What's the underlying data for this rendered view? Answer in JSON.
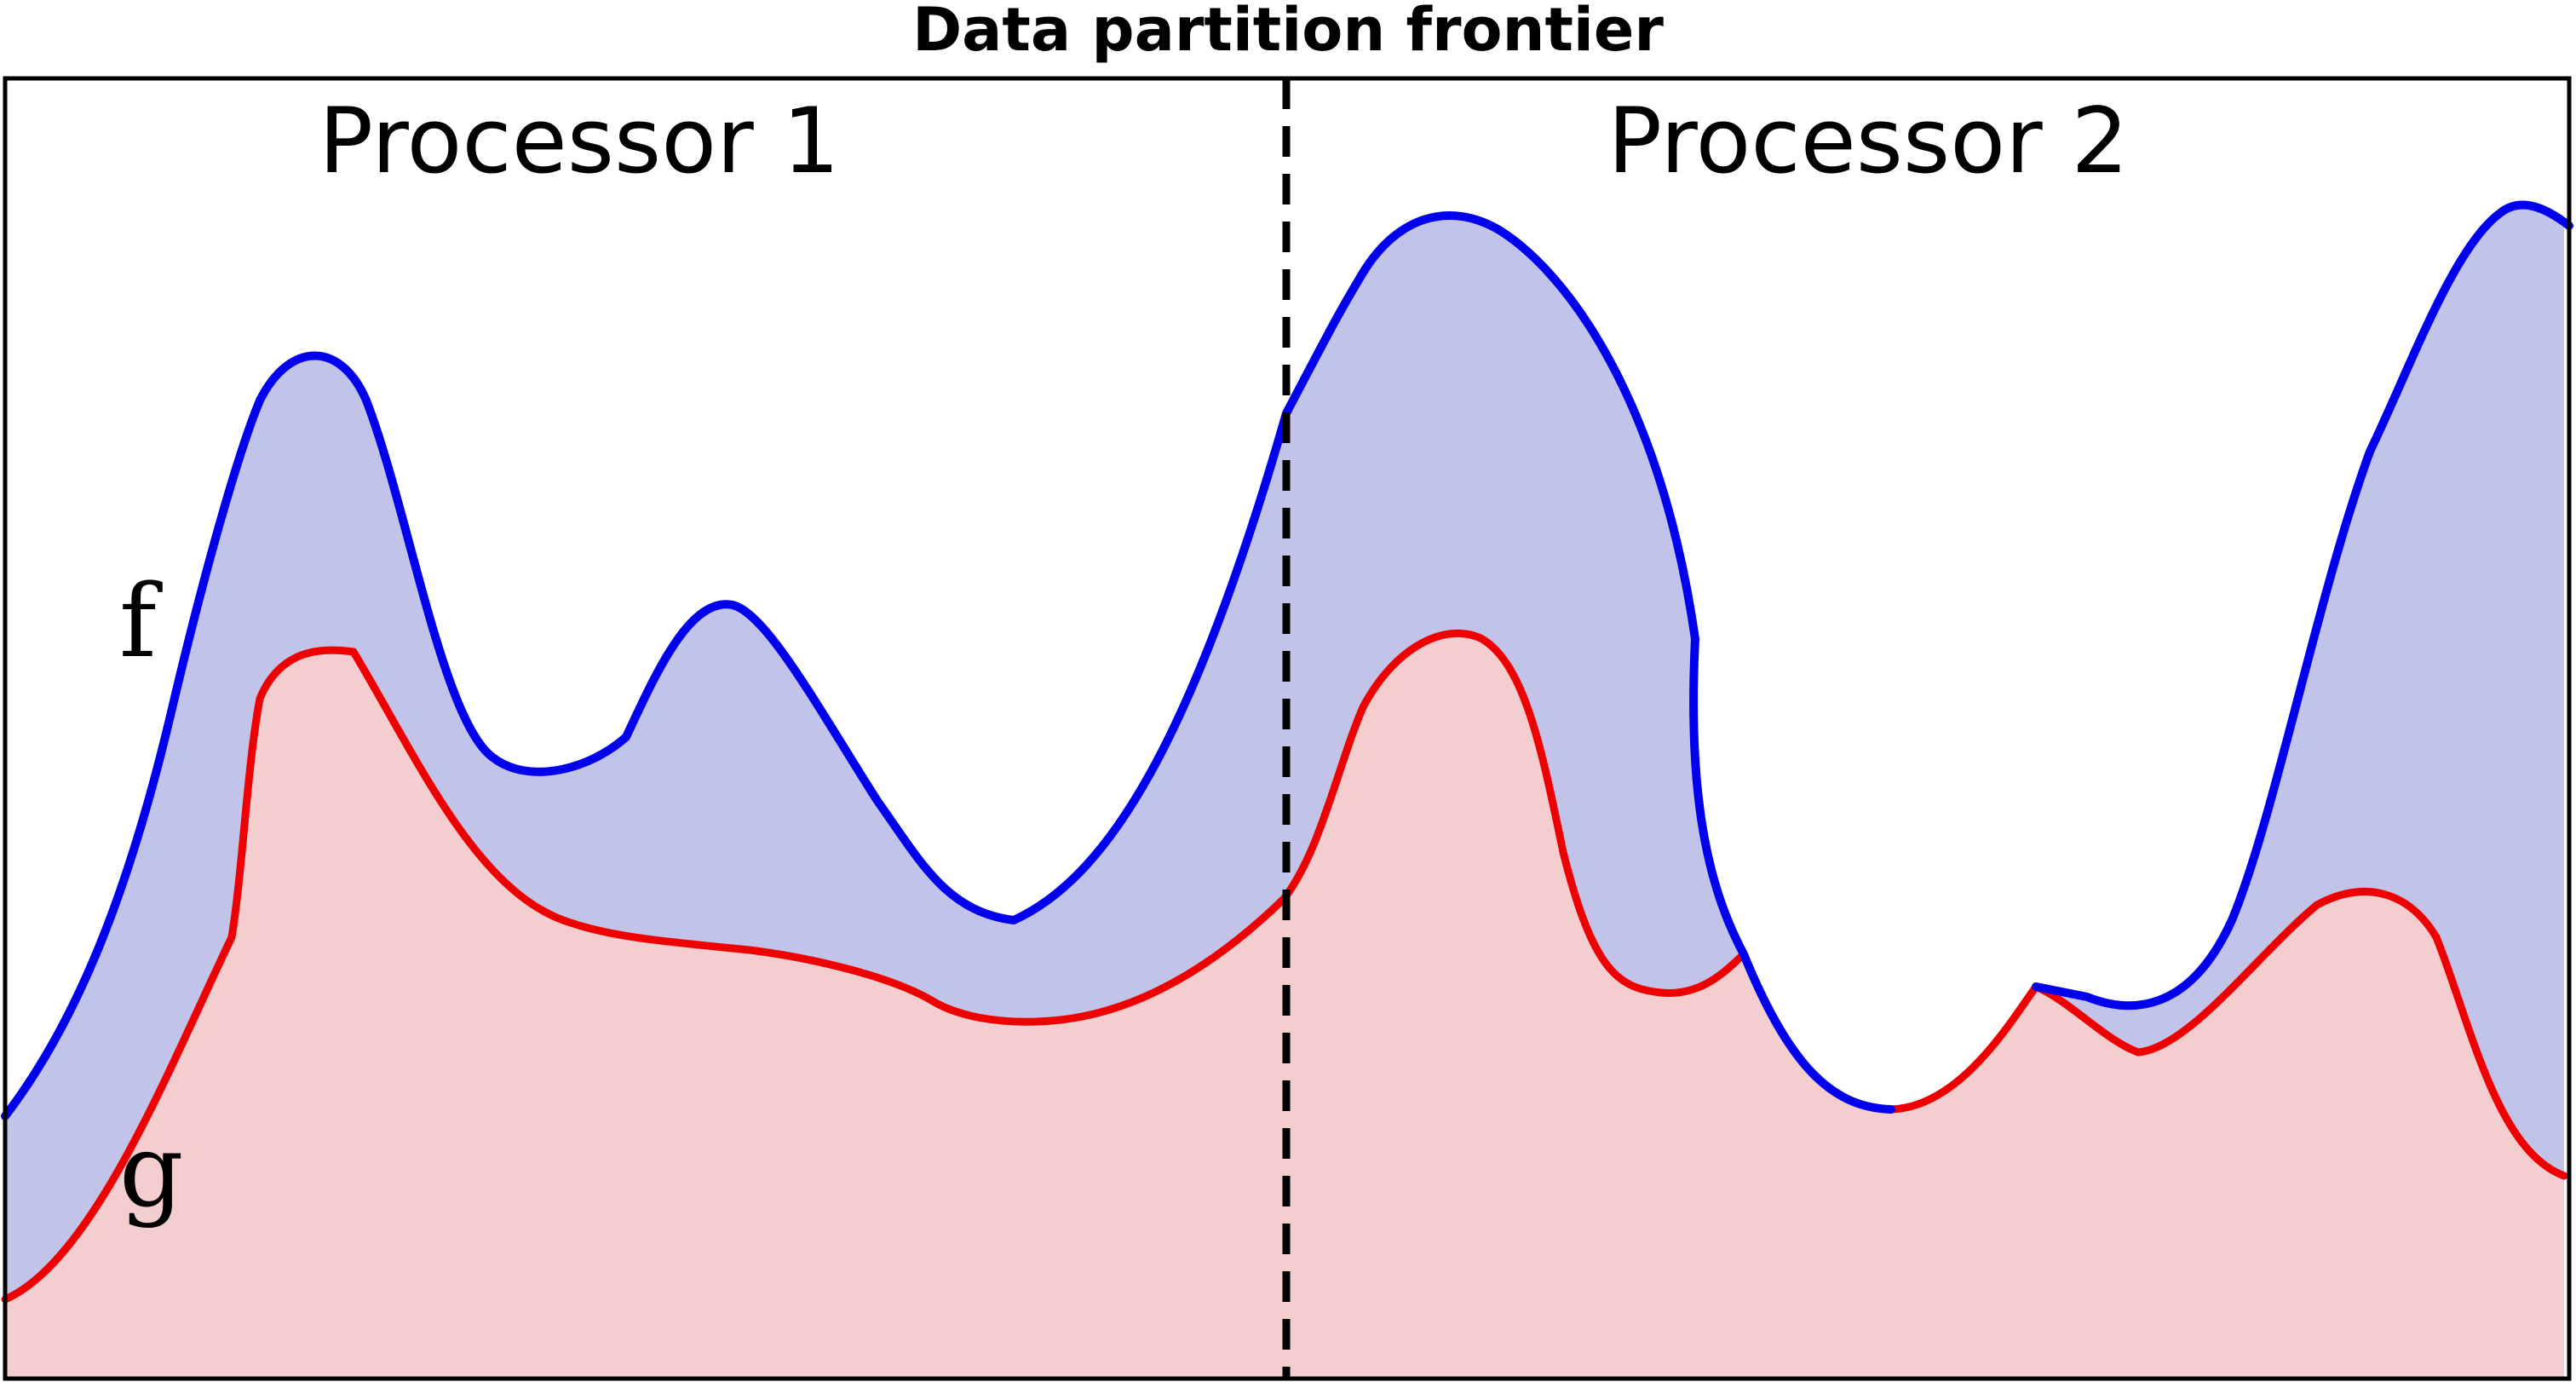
{
  "figure": {
    "title": "Data partition frontier",
    "regions": [
      {
        "label": "Processor 1"
      },
      {
        "label": "Processor 2"
      }
    ],
    "curves": {
      "f": {
        "label": "f",
        "color": "#0000ee",
        "fill_color": "#c2c3e8"
      },
      "g": {
        "label": "g",
        "color": "#ee0000",
        "fill_color": "#f4cdcf"
      }
    },
    "frontier_line": {
      "style": "dashed",
      "color": "#000000"
    }
  }
}
